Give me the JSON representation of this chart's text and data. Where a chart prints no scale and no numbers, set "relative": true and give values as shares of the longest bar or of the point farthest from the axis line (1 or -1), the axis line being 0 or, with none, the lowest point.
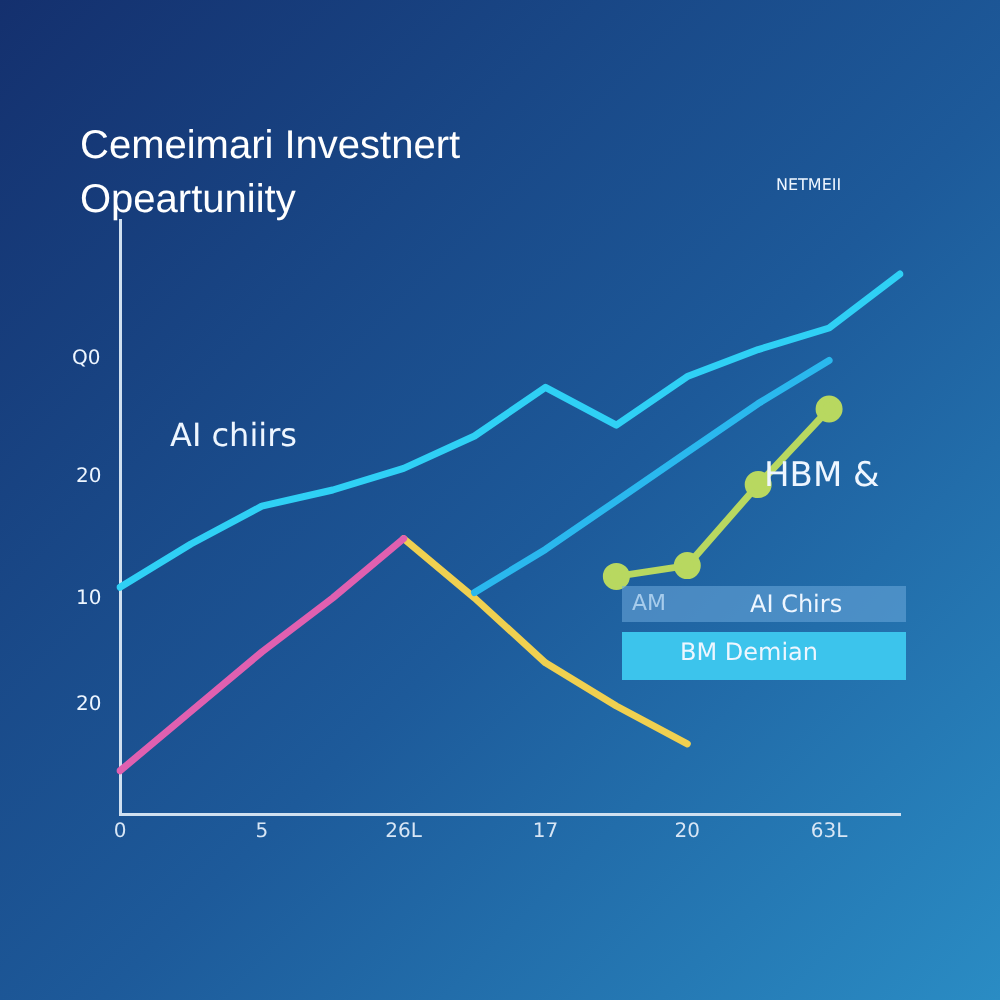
{
  "chart_data": {
    "type": "line",
    "title": "Cemeimari Investnert Opeartuniity",
    "annotations": [
      "AI chiirs",
      "HBM &",
      "AM",
      "AI Chirs",
      "BM Demian",
      "NETMEII",
      "Q0",
      "20",
      "10",
      "20"
    ],
    "relative": true,
    "categories": [
      "0",
      null,
      "5",
      null,
      "26L",
      null,
      "17",
      null,
      "20",
      null,
      "63L",
      null
    ],
    "series": [
      {
        "color": "#2fd0f5",
        "values": [
          0.42,
          0.5,
          0.57,
          0.6,
          0.64,
          0.7,
          0.79,
          0.72,
          0.81,
          0.86,
          0.9,
          1
        ]
      },
      {
        "color": "#2ab8ee",
        "values": [
          null,
          null,
          null,
          null,
          null,
          0.41,
          0.49,
          0.58,
          0.67,
          0.76,
          0.84,
          null
        ]
      },
      {
        "color": "#e060b0",
        "values": [
          0.08,
          0.19,
          0.3,
          0.4,
          0.51,
          null,
          null,
          null,
          null,
          null,
          null,
          null
        ]
      },
      {
        "color": "#f0d050",
        "values": [
          null,
          null,
          null,
          null,
          0.51,
          0.4,
          0.28,
          0.2,
          0.13,
          null,
          null,
          null
        ]
      },
      {
        "color": "#b8d860",
        "marker": "circle",
        "values": [
          null,
          null,
          null,
          null,
          null,
          null,
          null,
          0.44,
          0.46,
          0.61,
          0.75,
          null
        ]
      }
    ]
  }
}
